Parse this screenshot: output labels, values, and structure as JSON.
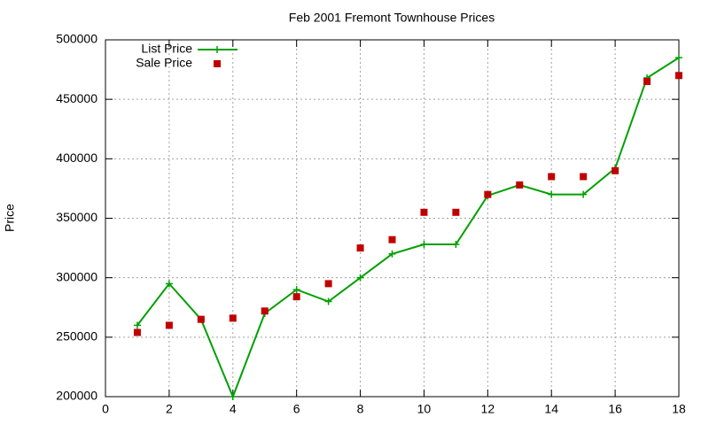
{
  "chart_data": {
    "type": "line",
    "title": "Feb 2001 Fremont Townhouse Prices",
    "y_label": "Price",
    "x": [
      1,
      2,
      3,
      4,
      5,
      6,
      7,
      8,
      9,
      10,
      11,
      12,
      13,
      14,
      15,
      16,
      17,
      18
    ],
    "series": [
      {
        "name": "List Price",
        "color": "#00a000",
        "style": "linespoints",
        "values": [
          260000,
          295000,
          265000,
          200000,
          270000,
          290000,
          280000,
          300000,
          320000,
          328000,
          328000,
          369000,
          378000,
          370000,
          370000,
          392000,
          468000,
          485000
        ]
      },
      {
        "name": "Sale Price",
        "color": "#c00000",
        "style": "points",
        "values": [
          254000,
          260000,
          265000,
          266000,
          272000,
          284000,
          295000,
          325000,
          332000,
          355000,
          355000,
          370000,
          378000,
          385000,
          385000,
          390000,
          465000,
          470000
        ]
      }
    ],
    "xlim": [
      0,
      18
    ],
    "xticks": [
      0,
      2,
      4,
      6,
      8,
      10,
      12,
      14,
      16,
      18
    ],
    "ylim": [
      200000,
      500000
    ],
    "yticks": [
      200000,
      250000,
      300000,
      350000,
      400000,
      450000,
      500000
    ],
    "grid": true,
    "legend": "top-left"
  }
}
